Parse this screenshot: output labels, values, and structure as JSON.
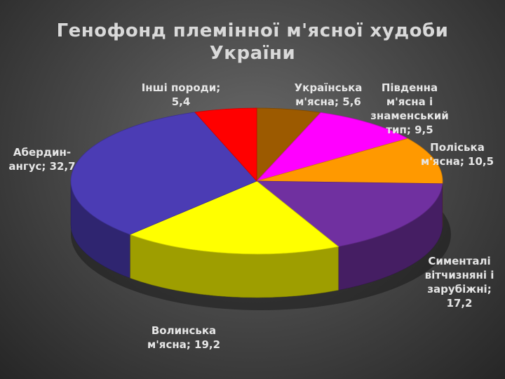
{
  "title": [
    "Генофонд племінної м'ясної худоби",
    "України"
  ],
  "chart_data": {
    "type": "pie",
    "title": "Генофонд племінної м'ясної худоби України",
    "slices": [
      {
        "label": "Українська м'ясна",
        "value": 5.6,
        "color": "#9C5A00",
        "label_lines": [
          "Українська",
          "м'ясна; 5,6"
        ]
      },
      {
        "label": "Південна м'ясна і знаменський тип",
        "value": 9.5,
        "color": "#FF00FF",
        "label_lines": [
          "Південна",
          "м'ясна і",
          "знаменський",
          "тип; 9,5"
        ]
      },
      {
        "label": "Поліська м'ясна",
        "value": 10.5,
        "color": "#FF9900",
        "label_lines": [
          "Поліська",
          "м'ясна; 10,5"
        ]
      },
      {
        "label": "Сименталі вітчизняні і зарубіжні",
        "value": 17.2,
        "color": "#7030A0",
        "label_lines": [
          "Сименталі",
          "вітчизняні і",
          "зарубіжні;",
          "17,2"
        ]
      },
      {
        "label": "Волинська м'ясна",
        "value": 19.2,
        "color": "#FFFF00",
        "label_lines": [
          "Волинська",
          "м'ясна; 19,2"
        ]
      },
      {
        "label": "Абердин-ангус",
        "value": 32.7,
        "color": "#4B3CB4",
        "label_lines": [
          "Абердин-",
          "ангус; 32,7"
        ]
      },
      {
        "label": "Інші породи",
        "value": 5.4,
        "color": "#FF0000",
        "label_lines": [
          "Інші породи;",
          "5,4"
        ]
      }
    ]
  }
}
